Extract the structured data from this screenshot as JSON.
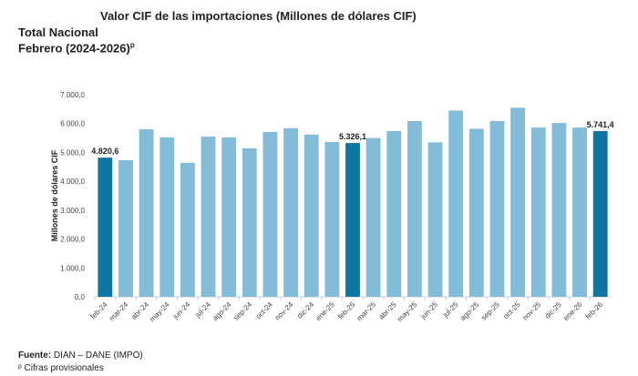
{
  "header": {
    "title": "Valor CIF de las importaciones (Millones de dólares CIF)",
    "subtitle1": "Total Nacional",
    "subtitle2": "Febrero (2024-2026)",
    "subtitle2_mark": "p"
  },
  "footer": {
    "source_label": "Fuente:",
    "source_text": " DIAN – DANE (IMPO)",
    "note": "ᵖ Cifras provisionales"
  },
  "chart_data": {
    "type": "bar",
    "title": "Valor CIF de las importaciones (Millones de dólares CIF)",
    "xlabel": "",
    "ylabel": "Millones de dólares CIF",
    "ylim": [
      0,
      7000
    ],
    "yticks": [
      "0,0",
      "1.000,0",
      "2.000,0",
      "3.000,0",
      "4.000,0",
      "5.000,0",
      "6.000,0",
      "7.000,0"
    ],
    "grid": false,
    "categories": [
      "feb-24",
      "mar-24",
      "abr-24",
      "may-24",
      "jun-24",
      "jul-24",
      "ago-24",
      "sep-24",
      "oct-24",
      "nov-24",
      "dic-24",
      "ene-25",
      "feb-25",
      "mar-25",
      "abr-25",
      "may-25",
      "jun-25",
      "jul-25",
      "ago-25",
      "sep-25",
      "oct-25",
      "nov-25",
      "dic-25",
      "ene-26",
      "feb-26"
    ],
    "values": [
      4820.6,
      4730,
      5800,
      5520,
      4640,
      5550,
      5520,
      5140,
      5710,
      5840,
      5620,
      5360,
      5326.1,
      5500,
      5740,
      6090,
      5350,
      6450,
      5820,
      6090,
      6550,
      5860,
      6020,
      5860,
      5741.4
    ],
    "highlighted": [
      "feb-24",
      "feb-25",
      "feb-26"
    ],
    "data_labels": {
      "feb-24": "4.820,6",
      "feb-25": "5.326,1",
      "feb-26": "5.741,4"
    },
    "colors": {
      "highlight": "#0e76a0",
      "normal": "#83bcd8"
    }
  }
}
